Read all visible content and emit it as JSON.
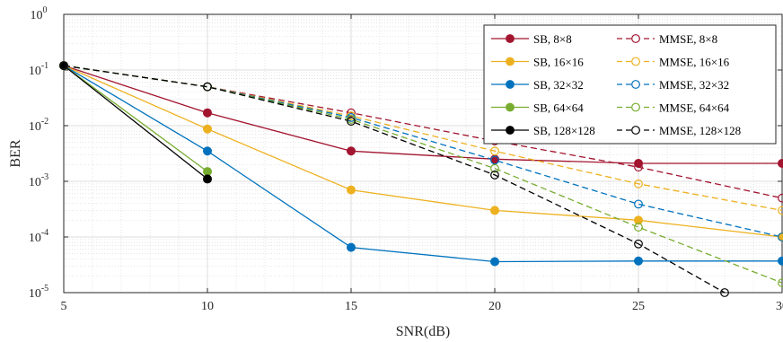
{
  "chart_data": {
    "type": "line",
    "title": "",
    "xlabel": "SNR(dB)",
    "ylabel": "BER",
    "xlim": [
      5,
      30
    ],
    "ylim": [
      1e-05,
      1
    ],
    "yscale": "log",
    "xticks": [
      5,
      10,
      15,
      20,
      25,
      30
    ],
    "xtick_labels": [
      "5",
      "10",
      "15",
      "20",
      "25",
      "30"
    ],
    "yticks": [
      {
        "base": "10",
        "exp": "0"
      },
      {
        "base": "10",
        "exp": "-1"
      },
      {
        "base": "10",
        "exp": "-2"
      },
      {
        "base": "10",
        "exp": "-3"
      },
      {
        "base": "10",
        "exp": "-4"
      },
      {
        "base": "10",
        "exp": "-5"
      }
    ],
    "grid": true,
    "legend_position": "top-right",
    "series": [
      {
        "name": "SB, 8×8",
        "color": "#a2142f",
        "dash": false,
        "marker": "filled",
        "x": [
          5,
          10,
          15,
          20,
          25,
          30
        ],
        "y": [
          0.12,
          0.017,
          0.0035,
          0.0025,
          0.0021,
          0.0021
        ]
      },
      {
        "name": "SB, 16×16",
        "color": "#edb120",
        "dash": false,
        "marker": "filled",
        "x": [
          5,
          10,
          15,
          20,
          25,
          30
        ],
        "y": [
          0.12,
          0.0087,
          0.0007,
          0.0003,
          0.0002,
          0.0001
        ]
      },
      {
        "name": "SB, 32×32",
        "color": "#0072bd",
        "dash": false,
        "marker": "filled",
        "x": [
          5,
          10,
          15,
          20,
          25,
          30
        ],
        "y": [
          0.12,
          0.0035,
          6.5e-05,
          3.6e-05,
          3.7e-05,
          3.7e-05
        ]
      },
      {
        "name": "SB, 64×64",
        "color": "#77ac30",
        "dash": false,
        "marker": "filled",
        "x": [
          5,
          10
        ],
        "y": [
          0.12,
          0.0015
        ]
      },
      {
        "name": "SB, 128×128",
        "color": "#000000",
        "dash": false,
        "marker": "filled",
        "x": [
          5,
          10
        ],
        "y": [
          0.12,
          0.0011
        ]
      },
      {
        "name": "MMSE, 8×8",
        "color": "#a2142f",
        "dash": true,
        "marker": "open",
        "x": [
          5,
          10,
          15,
          20,
          25,
          30
        ],
        "y": [
          0.12,
          0.05,
          0.017,
          0.0053,
          0.0018,
          0.0005
        ]
      },
      {
        "name": "MMSE, 16×16",
        "color": "#edb120",
        "dash": true,
        "marker": "open",
        "x": [
          5,
          10,
          15,
          20,
          25,
          30
        ],
        "y": [
          0.12,
          0.05,
          0.015,
          0.0035,
          0.0009,
          0.0003
        ]
      },
      {
        "name": "MMSE, 32×32",
        "color": "#0072bd",
        "dash": true,
        "marker": "open",
        "x": [
          5,
          10,
          15,
          20,
          25,
          30
        ],
        "y": [
          0.12,
          0.05,
          0.014,
          0.0024,
          0.00039,
          0.0001
        ]
      },
      {
        "name": "MMSE, 64×64",
        "color": "#77ac30",
        "dash": true,
        "marker": "open",
        "x": [
          5,
          10,
          15,
          20,
          25,
          30
        ],
        "y": [
          0.12,
          0.05,
          0.013,
          0.0017,
          0.00015,
          1.5e-05
        ]
      },
      {
        "name": "MMSE, 128×128",
        "color": "#000000",
        "dash": true,
        "marker": "open",
        "x": [
          5,
          10,
          15,
          20,
          25,
          28
        ],
        "y": [
          0.12,
          0.05,
          0.012,
          0.0013,
          7.5e-05,
          1e-05
        ]
      }
    ]
  }
}
